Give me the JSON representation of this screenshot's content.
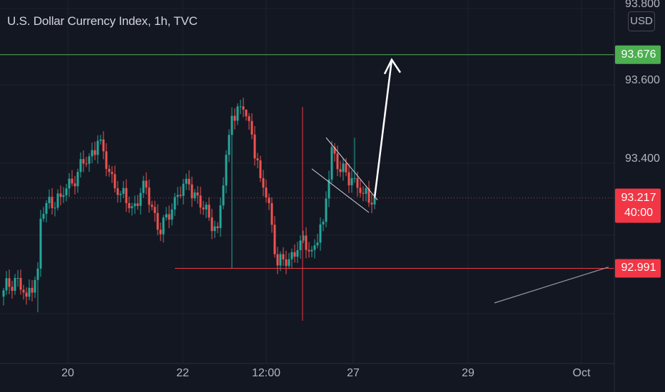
{
  "header": {
    "title": "U.S. Dollar Currency Index, 1h, TVC",
    "currency": "USD"
  },
  "colors": {
    "background": "#131722",
    "up": "#26a69a",
    "down": "#ef5350",
    "target": "#4caf50",
    "support": "#f23645",
    "text": "#b2b5be"
  },
  "price_labels": {
    "target": {
      "value": "93.676",
      "color": "#4caf50"
    },
    "current": {
      "value": "93.217",
      "countdown": "40:00",
      "color": "#f23645"
    },
    "support": {
      "value": "92.991",
      "color": "#f23645"
    }
  },
  "chart_data": {
    "type": "candlestick",
    "title": "U.S. Dollar Currency Index, 1h, TVC",
    "y_axis": {
      "ticks": [
        "93.800",
        "93.600",
        "93.400"
      ],
      "range": [
        92.88,
        93.82
      ],
      "unit": "USD"
    },
    "x_axis": {
      "ticks": [
        "20",
        "22",
        "12:00",
        "27",
        "29",
        "Oct"
      ]
    },
    "anchors": [
      {
        "i": 0,
        "c": 92.92
      },
      {
        "i": 4,
        "c": 92.96
      },
      {
        "i": 8,
        "c": 92.9
      },
      {
        "i": 12,
        "c": 92.99
      },
      {
        "i": 13,
        "c": 93.15
      },
      {
        "i": 15,
        "c": 93.2
      },
      {
        "i": 20,
        "c": 93.22
      },
      {
        "i": 26,
        "c": 93.3
      },
      {
        "i": 30,
        "c": 93.35
      },
      {
        "i": 33,
        "c": 93.4
      },
      {
        "i": 37,
        "c": 93.3
      },
      {
        "i": 41,
        "c": 93.23
      },
      {
        "i": 45,
        "c": 93.19
      },
      {
        "i": 50,
        "c": 93.25
      },
      {
        "i": 55,
        "c": 93.1
      },
      {
        "i": 60,
        "c": 93.22
      },
      {
        "i": 65,
        "c": 93.26
      },
      {
        "i": 70,
        "c": 93.18
      },
      {
        "i": 75,
        "c": 93.12
      },
      {
        "i": 80,
        "c": 93.48
      },
      {
        "i": 84,
        "c": 93.5
      },
      {
        "i": 87,
        "c": 93.42
      },
      {
        "i": 90,
        "c": 93.28
      },
      {
        "i": 93,
        "c": 93.2
      },
      {
        "i": 96,
        "c": 93.0
      },
      {
        "i": 100,
        "c": 93.02
      },
      {
        "i": 104,
        "c": 93.08
      },
      {
        "i": 108,
        "c": 93.05
      },
      {
        "i": 112,
        "c": 93.14
      },
      {
        "i": 115,
        "c": 93.38
      },
      {
        "i": 118,
        "c": 93.3
      },
      {
        "i": 122,
        "c": 93.28
      },
      {
        "i": 126,
        "c": 93.23
      },
      {
        "i": 130,
        "c": 93.217
      }
    ],
    "candle_count": 131,
    "spikes": [
      {
        "i": 12,
        "low": 92.85
      },
      {
        "i": 80,
        "low": 92.99
      },
      {
        "i": 85,
        "high": 93.5
      },
      {
        "i": 123,
        "high": 93.41
      }
    ],
    "horizontal_levels": [
      {
        "name": "target",
        "price": 93.676
      },
      {
        "name": "support",
        "price": 92.991
      },
      {
        "name": "current",
        "price": 93.217
      }
    ],
    "annotations": [
      {
        "name": "projection-arrow",
        "from": {
          "i": 130,
          "price": 93.217
        },
        "to": {
          "i": 136,
          "price": 93.66
        }
      },
      {
        "name": "channel-upper",
        "from": {
          "i": 113,
          "price": 93.41
        },
        "to": {
          "i": 131,
          "price": 93.21
        }
      },
      {
        "name": "channel-lower",
        "from": {
          "i": 108,
          "price": 93.31
        },
        "to": {
          "i": 128,
          "price": 93.17
        }
      },
      {
        "name": "trend-line",
        "from": {
          "i": 172,
          "price": 92.88
        },
        "to": {
          "i": 212,
          "price": 92.995
        }
      },
      {
        "name": "vertical-marker",
        "i": 104
      }
    ],
    "grid": true,
    "legend": "none"
  }
}
